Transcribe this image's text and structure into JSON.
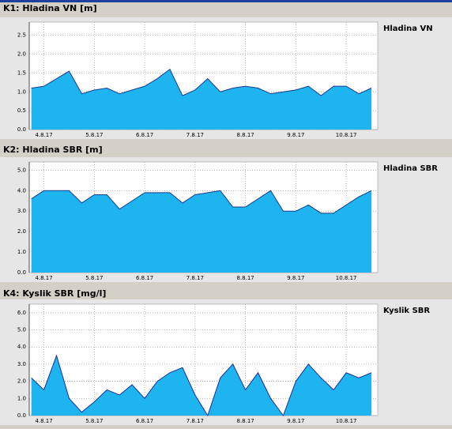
{
  "chart_data": [
    {
      "type": "area",
      "title": "K1: Hladina VN [m]",
      "x": [
        "2017-08-03T18:00",
        "2017-08-04T00:00",
        "2017-08-04T06:00",
        "2017-08-04T12:00",
        "2017-08-04T18:00",
        "2017-08-05T00:00",
        "2017-08-05T06:00",
        "2017-08-05T12:00",
        "2017-08-05T18:00",
        "2017-08-06T00:00",
        "2017-08-06T06:00",
        "2017-08-06T12:00",
        "2017-08-06T18:00",
        "2017-08-07T00:00",
        "2017-08-07T06:00",
        "2017-08-07T12:00",
        "2017-08-07T18:00",
        "2017-08-08T00:00",
        "2017-08-08T06:00",
        "2017-08-08T12:00",
        "2017-08-08T18:00",
        "2017-08-09T00:00",
        "2017-08-09T06:00",
        "2017-08-09T12:00",
        "2017-08-09T18:00",
        "2017-08-10T00:00",
        "2017-08-10T06:00",
        "2017-08-10T12:00"
      ],
      "series": [
        {
          "name": "Hladina VN",
          "color": "#1eb4f0",
          "line_color": "#1a3c8c",
          "values": [
            1.1,
            1.15,
            1.35,
            1.55,
            0.95,
            1.05,
            1.1,
            0.95,
            1.05,
            1.15,
            1.35,
            1.6,
            0.9,
            1.05,
            1.35,
            1.0,
            1.1,
            1.15,
            1.1,
            0.95,
            1.0,
            1.05,
            1.15,
            0.9,
            1.15,
            1.15,
            0.95,
            1.1
          ]
        }
      ],
      "xlim": [
        "2017-08-03T17:00",
        "2017-08-10T15:00"
      ],
      "xticks": [
        {
          "value": "2017-08-04",
          "label": "4.8.17"
        },
        {
          "value": "2017-08-05",
          "label": "5.8.17"
        },
        {
          "value": "2017-08-06",
          "label": "6.8.17"
        },
        {
          "value": "2017-08-07",
          "label": "7.8.17"
        },
        {
          "value": "2017-08-08",
          "label": "8.8.17"
        },
        {
          "value": "2017-08-09",
          "label": "9.8.17"
        },
        {
          "value": "2017-08-10",
          "label": "10.8.17"
        }
      ],
      "ylim": [
        0,
        2.85
      ],
      "yticks": [
        {
          "value": 0,
          "label": "0.0"
        },
        {
          "value": 0.5,
          "label": "0.5"
        },
        {
          "value": 1,
          "label": "1.0"
        },
        {
          "value": 1.5,
          "label": "1.5"
        },
        {
          "value": 2,
          "label": "2.0"
        },
        {
          "value": 2.5,
          "label": "2.5"
        }
      ],
      "grid": true
    },
    {
      "type": "area",
      "title": "K2: Hladina SBR [m]",
      "x": [
        "2017-08-03T18:00",
        "2017-08-04T00:00",
        "2017-08-04T06:00",
        "2017-08-04T12:00",
        "2017-08-04T18:00",
        "2017-08-05T00:00",
        "2017-08-05T06:00",
        "2017-08-05T12:00",
        "2017-08-05T18:00",
        "2017-08-06T00:00",
        "2017-08-06T06:00",
        "2017-08-06T12:00",
        "2017-08-06T18:00",
        "2017-08-07T00:00",
        "2017-08-07T06:00",
        "2017-08-07T12:00",
        "2017-08-07T18:00",
        "2017-08-08T00:00",
        "2017-08-08T06:00",
        "2017-08-08T12:00",
        "2017-08-08T18:00",
        "2017-08-09T00:00",
        "2017-08-09T06:00",
        "2017-08-09T12:00",
        "2017-08-09T18:00",
        "2017-08-10T00:00",
        "2017-08-10T06:00",
        "2017-08-10T12:00"
      ],
      "series": [
        {
          "name": "Hladina SBR",
          "color": "#1eb4f0",
          "line_color": "#1a3c8c",
          "values": [
            3.6,
            4.0,
            4.0,
            4.0,
            3.4,
            3.8,
            3.8,
            3.1,
            3.5,
            3.9,
            3.9,
            3.9,
            3.4,
            3.8,
            3.9,
            4.0,
            3.2,
            3.2,
            3.6,
            4.0,
            3.0,
            3.0,
            3.3,
            2.9,
            2.9,
            3.3,
            3.7,
            4.0
          ]
        }
      ],
      "xlim": [
        "2017-08-03T17:00",
        "2017-08-10T15:00"
      ],
      "xticks": [
        {
          "value": "2017-08-04",
          "label": "4.8.17"
        },
        {
          "value": "2017-08-05",
          "label": "5.8.17"
        },
        {
          "value": "2017-08-06",
          "label": "6.8.17"
        },
        {
          "value": "2017-08-07",
          "label": "7.8.17"
        },
        {
          "value": "2017-08-08",
          "label": "8.8.17"
        },
        {
          "value": "2017-08-09",
          "label": "9.8.17"
        },
        {
          "value": "2017-08-10",
          "label": "10.8.17"
        }
      ],
      "ylim": [
        0,
        5.4
      ],
      "yticks": [
        {
          "value": 0,
          "label": "0.0"
        },
        {
          "value": 1,
          "label": "1.0"
        },
        {
          "value": 2,
          "label": "2.0"
        },
        {
          "value": 3,
          "label": "3.0"
        },
        {
          "value": 4,
          "label": "4.0"
        },
        {
          "value": 5,
          "label": "5.0"
        }
      ],
      "grid": true
    },
    {
      "type": "area",
      "title": "K4: Kyslik SBR [mg/l]",
      "x": [
        "2017-08-03T18:00",
        "2017-08-04T00:00",
        "2017-08-04T06:00",
        "2017-08-04T12:00",
        "2017-08-04T18:00",
        "2017-08-05T00:00",
        "2017-08-05T06:00",
        "2017-08-05T12:00",
        "2017-08-05T18:00",
        "2017-08-06T00:00",
        "2017-08-06T06:00",
        "2017-08-06T12:00",
        "2017-08-06T18:00",
        "2017-08-07T00:00",
        "2017-08-07T06:00",
        "2017-08-07T12:00",
        "2017-08-07T18:00",
        "2017-08-08T00:00",
        "2017-08-08T06:00",
        "2017-08-08T12:00",
        "2017-08-08T18:00",
        "2017-08-09T00:00",
        "2017-08-09T06:00",
        "2017-08-09T12:00",
        "2017-08-09T18:00",
        "2017-08-10T00:00",
        "2017-08-10T06:00",
        "2017-08-10T12:00"
      ],
      "series": [
        {
          "name": "Kyslik SBR",
          "color": "#1eb4f0",
          "line_color": "#1a2f9a",
          "values": [
            2.2,
            1.5,
            3.5,
            1.0,
            0.2,
            0.8,
            1.5,
            1.2,
            1.8,
            1.0,
            2.0,
            2.5,
            2.8,
            1.2,
            0.0,
            2.2,
            3.0,
            1.5,
            2.5,
            1.0,
            0.0,
            2.0,
            3.0,
            2.2,
            1.5,
            2.5,
            2.2,
            2.5
          ]
        }
      ],
      "xlim": [
        "2017-08-03T17:00",
        "2017-08-10T15:00"
      ],
      "xticks": [
        {
          "value": "2017-08-04",
          "label": "4.8.17"
        },
        {
          "value": "2017-08-05",
          "label": "5.8.17"
        },
        {
          "value": "2017-08-06",
          "label": "6.8.17"
        },
        {
          "value": "2017-08-07",
          "label": "7.8.17"
        },
        {
          "value": "2017-08-08",
          "label": "8.8.17"
        },
        {
          "value": "2017-08-09",
          "label": "9.8.17"
        },
        {
          "value": "2017-08-10",
          "label": "10.8.17"
        }
      ],
      "ylim": [
        0,
        6.5
      ],
      "yticks": [
        {
          "value": 0,
          "label": "0.0"
        },
        {
          "value": 1,
          "label": "1.0"
        },
        {
          "value": 2,
          "label": "2.0"
        },
        {
          "value": 3,
          "label": "3.0"
        },
        {
          "value": 4,
          "label": "4.0"
        },
        {
          "value": 5,
          "label": "5.0"
        },
        {
          "value": 6,
          "label": "6.0"
        }
      ],
      "grid": true
    }
  ]
}
